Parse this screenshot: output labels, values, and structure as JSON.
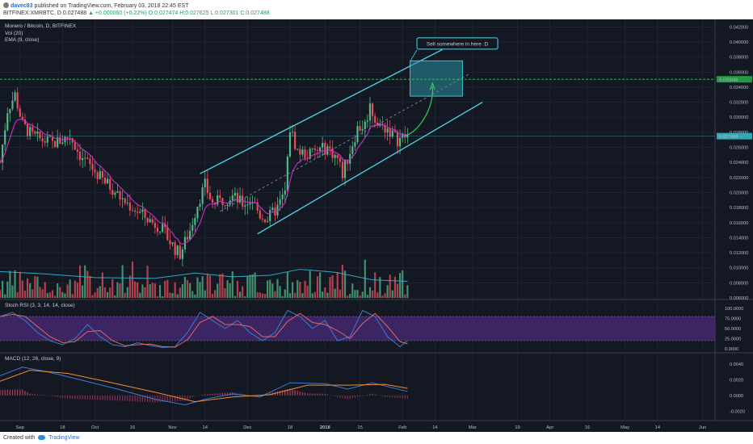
{
  "header": {
    "author": "davec83",
    "published_text": "published on TradingView.com, February 03, 2018 22:45 EST",
    "symbol": "BITFINEX:XMRBTC, D",
    "last": "0.027488",
    "change": "▲ +0.000060 (+0.22%)",
    "open": "O:0.027474",
    "high": "H:0.027625",
    "low": "L:0.027301",
    "close": "C:0.027488"
  },
  "chart_data": {
    "type": "candlestick",
    "title": "Monero / Bitcoin, D, BITFINEX",
    "legend": [
      "Vol (20)",
      "EMA (9, close)"
    ],
    "x_ticks": [
      "Sep",
      "18",
      "Oct",
      "16",
      "Nov",
      "14",
      "Dec",
      "18",
      "2018",
      "15",
      "Feb",
      "14",
      "Mar",
      "19",
      "Apr",
      "16",
      "May",
      "14",
      "Jun"
    ],
    "y_ticks": [
      "0.042000",
      "0.040000",
      "0.038000",
      "0.036000",
      "0.034000",
      "0.032000",
      "0.030000",
      "0.028000",
      "0.026000",
      "0.024000",
      "0.022000",
      "0.020000",
      "0.018000",
      "0.016000",
      "0.014000",
      "0.012000",
      "0.010000",
      "0.008000",
      "0.006000"
    ],
    "ylim": [
      0.006,
      0.043
    ],
    "price_marker": "0.027488",
    "level_marker": "0.035046",
    "annotation": "Sell somewhere in here :D",
    "price_path": [
      [
        "2017-08-24",
        0.024
      ],
      [
        "2017-08-27",
        0.031
      ],
      [
        "2017-08-30",
        0.033
      ],
      [
        "2017-09-02",
        0.029
      ],
      [
        "2017-09-06",
        0.0275
      ],
      [
        "2017-09-10",
        0.027
      ],
      [
        "2017-09-14",
        0.0265
      ],
      [
        "2017-09-18",
        0.027
      ],
      [
        "2017-09-21",
        0.0275
      ],
      [
        "2017-09-25",
        0.025
      ],
      [
        "2017-09-29",
        0.0235
      ],
      [
        "2017-10-03",
        0.022
      ],
      [
        "2017-10-08",
        0.0205
      ],
      [
        "2017-10-12",
        0.019
      ],
      [
        "2017-10-16",
        0.018
      ],
      [
        "2017-10-20",
        0.017
      ],
      [
        "2017-10-24",
        0.016
      ],
      [
        "2017-10-27",
        0.0155
      ],
      [
        "2017-10-30",
        0.014
      ],
      [
        "2017-11-02",
        0.0125
      ],
      [
        "2017-11-04",
        0.0118
      ],
      [
        "2017-11-08",
        0.015
      ],
      [
        "2017-11-11",
        0.0185
      ],
      [
        "2017-11-14",
        0.021
      ],
      [
        "2017-11-17",
        0.0185
      ],
      [
        "2017-11-21",
        0.019
      ],
      [
        "2017-11-25",
        0.0195
      ],
      [
        "2017-11-29",
        0.0185
      ],
      [
        "2017-12-03",
        0.019
      ],
      [
        "2017-12-06",
        0.017
      ],
      [
        "2017-12-09",
        0.0165
      ],
      [
        "2017-12-13",
        0.018
      ],
      [
        "2017-12-16",
        0.02
      ],
      [
        "2017-12-18",
        0.0285
      ],
      [
        "2017-12-21",
        0.0255
      ],
      [
        "2017-12-25",
        0.025
      ],
      [
        "2017-12-29",
        0.0255
      ],
      [
        "2018-01-02",
        0.026
      ],
      [
        "2018-01-06",
        0.0245
      ],
      [
        "2018-01-08",
        0.0225
      ],
      [
        "2018-01-11",
        0.0255
      ],
      [
        "2018-01-14",
        0.0285
      ],
      [
        "2018-01-17",
        0.029
      ],
      [
        "2018-01-19",
        0.0315
      ],
      [
        "2018-01-22",
        0.029
      ],
      [
        "2018-01-26",
        0.0285
      ],
      [
        "2018-01-30",
        0.027
      ],
      [
        "2018-02-03",
        0.0275
      ]
    ],
    "vol_ema_path": [
      [
        "2017-08-24",
        0.0095
      ],
      [
        "2017-09-10",
        0.0092
      ],
      [
        "2017-10-01",
        0.0087
      ],
      [
        "2017-10-25",
        0.0086
      ],
      [
        "2017-11-10",
        0.0093
      ],
      [
        "2017-11-25",
        0.0088
      ],
      [
        "2017-12-10",
        0.009
      ],
      [
        "2017-12-22",
        0.0098
      ],
      [
        "2018-01-05",
        0.0094
      ],
      [
        "2018-01-20",
        0.0084
      ],
      [
        "2018-02-03",
        0.0082
      ]
    ],
    "channel_upper": [
      [
        "2017-11-12",
        0.0225
      ],
      [
        "2018-02-17",
        0.039
      ]
    ],
    "channel_lower": [
      [
        "2017-12-05",
        0.0145
      ],
      [
        "2018-03-05",
        0.032
      ]
    ],
    "channel_mid_dashed": [
      [
        "2017-11-20",
        0.0175
      ],
      [
        "2018-02-28",
        0.0358
      ]
    ],
    "sell_zone": {
      "x": [
        "2018-02-04",
        "2018-02-25"
      ],
      "y": [
        0.0328,
        0.0375
      ]
    },
    "level_line": 0.035046,
    "stoch_rsi": {
      "title": "Stoch RSI (3, 3, 14, 14, close)",
      "ticks": [
        "100.0000",
        "75.0000",
        "50.0000",
        "25.0000",
        "0.0000"
      ],
      "k_path": [
        [
          "2017-08-24",
          80
        ],
        [
          "2017-08-29",
          90
        ],
        [
          "2017-09-03",
          70
        ],
        [
          "2017-09-08",
          40
        ],
        [
          "2017-09-13",
          20
        ],
        [
          "2017-09-18",
          10
        ],
        [
          "2017-09-23",
          25
        ],
        [
          "2017-09-28",
          60
        ],
        [
          "2017-10-03",
          30
        ],
        [
          "2017-10-08",
          10
        ],
        [
          "2017-10-13",
          5
        ],
        [
          "2017-10-18",
          15
        ],
        [
          "2017-10-23",
          8
        ],
        [
          "2017-10-28",
          3
        ],
        [
          "2017-11-02",
          5
        ],
        [
          "2017-11-07",
          40
        ],
        [
          "2017-11-12",
          90
        ],
        [
          "2017-11-17",
          70
        ],
        [
          "2017-11-22",
          50
        ],
        [
          "2017-11-27",
          70
        ],
        [
          "2017-12-02",
          40
        ],
        [
          "2017-12-07",
          20
        ],
        [
          "2017-12-12",
          40
        ],
        [
          "2017-12-17",
          95
        ],
        [
          "2017-12-22",
          80
        ],
        [
          "2017-12-27",
          50
        ],
        [
          "2018-01-01",
          70
        ],
        [
          "2018-01-06",
          20
        ],
        [
          "2018-01-11",
          30
        ],
        [
          "2018-01-16",
          95
        ],
        [
          "2018-01-21",
          80
        ],
        [
          "2018-01-26",
          30
        ],
        [
          "2018-01-31",
          5
        ],
        [
          "2018-02-03",
          20
        ]
      ],
      "band": [
        20,
        80
      ]
    },
    "macd": {
      "title": "MACD (12, 26, close, 9)",
      "ticks": [
        "0.0040",
        "0.0020",
        "0.0000",
        "-0.0020"
      ],
      "macd_path": [
        [
          "2017-08-24",
          0.0025
        ],
        [
          "2017-09-02",
          0.0036
        ],
        [
          "2017-09-12",
          0.003
        ],
        [
          "2017-09-25",
          0.002
        ],
        [
          "2017-10-10",
          0.0008
        ],
        [
          "2017-10-25",
          -0.0005
        ],
        [
          "2017-11-06",
          -0.0012
        ],
        [
          "2017-11-14",
          -0.0005
        ],
        [
          "2017-11-25",
          0.0002
        ],
        [
          "2017-12-06",
          -0.0002
        ],
        [
          "2017-12-18",
          0.0016
        ],
        [
          "2018-01-01",
          0.0015
        ],
        [
          "2018-01-10",
          0.0008
        ],
        [
          "2018-01-20",
          0.0016
        ],
        [
          "2018-02-03",
          0.0005
        ]
      ],
      "signal_path": [
        [
          "2017-08-24",
          0.0018
        ],
        [
          "2017-09-05",
          0.0032
        ],
        [
          "2017-09-20",
          0.0028
        ],
        [
          "2017-10-05",
          0.0018
        ],
        [
          "2017-10-25",
          0.0004
        ],
        [
          "2017-11-10",
          -0.0008
        ],
        [
          "2017-11-25",
          -0.0002
        ],
        [
          "2017-12-10",
          0.0001
        ],
        [
          "2017-12-25",
          0.0013
        ],
        [
          "2018-01-10",
          0.0013
        ],
        [
          "2018-01-25",
          0.0014
        ],
        [
          "2018-02-03",
          0.0009
        ]
      ]
    }
  },
  "colors": {
    "background": "#141823",
    "grid": "#232838",
    "up": "#53b987",
    "down": "#eb4d5c",
    "channel": "#4dd8e8",
    "ema": "#c730c7",
    "vol_ema": "#2fa8c4",
    "stoch_k": "#3b7cd4",
    "stoch_d": "#e0676b",
    "stoch_band": "#4a2a7a",
    "macd": "#3b7cd4",
    "signal": "#f08c2e",
    "level": "#2fcf5a"
  },
  "footer": {
    "created_with": "Created with",
    "brand": "TradingView"
  }
}
